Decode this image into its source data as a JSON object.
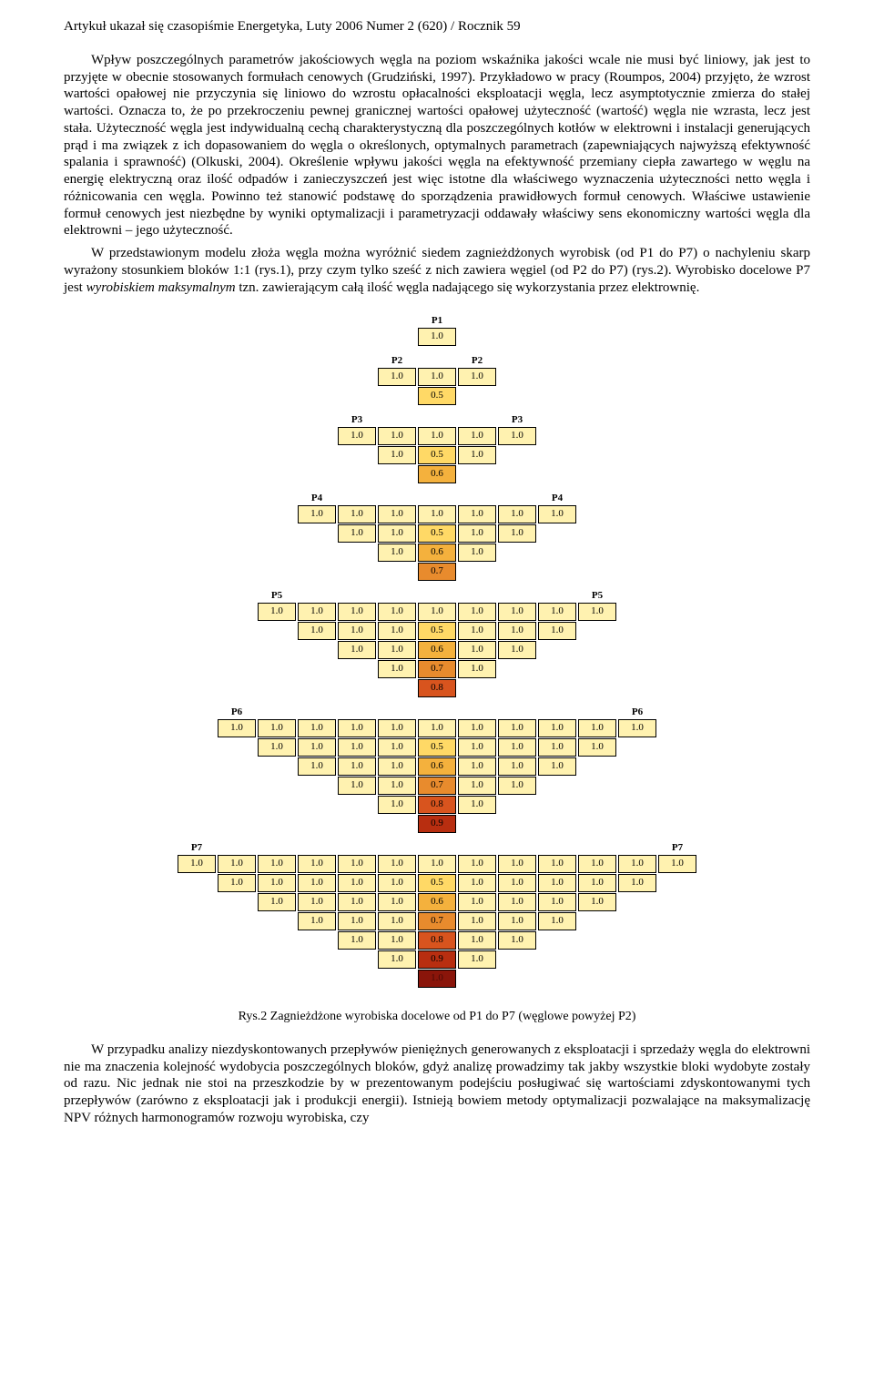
{
  "header": "Artykuł ukazał się czasopiśmie Energetyka, Luty 2006 Numer 2 (620) / Rocznik 59",
  "para1": "Wpływ poszczególnych parametrów jakościowych węgla na poziom wskaźnika jakości wcale nie musi być liniowy, jak jest to przyjęte w obecnie stosowanych formułach cenowych (Grudziński, 1997). Przykładowo w pracy (Roumpos, 2004) przyjęto, że wzrost wartości opałowej nie przyczynia się liniowo do wzrostu opłacalności eksploatacji węgla, lecz asymptotycznie zmierza do stałej wartości. Oznacza to, że po przekroczeniu pewnej granicznej wartości opałowej użyteczność (wartość) węgla nie wzrasta, lecz jest stała. Użyteczność węgla jest indywidualną cechą charakterystyczną dla poszczególnych kotłów w elektrowni i instalacji generujących prąd i ma związek z ich dopasowaniem do węgla o określonych, optymalnych parametrach (zapewniających najwyższą efektywność spalania i sprawność) (Olkuski, 2004). Określenie wpływu jakości węgla na efektywność przemiany ciepła zawartego w węglu na energię elektryczną oraz ilość odpadów i zanieczyszczeń jest więc istotne dla właściwego wyznaczenia użyteczności netto węgla i różnicowania cen węgla. Powinno też stanowić podstawę do sporządzenia prawidłowych formuł cenowych. Właściwe ustawienie formuł cenowych jest niezbędne by wyniki optymalizacji i parametryzacji oddawały właściwy sens ekonomiczny wartości węgla dla elektrowni – jego użyteczność.",
  "para2_a": "W przedstawionym modelu złoża węgla można wyróżnić siedem zagnieżdżonych wyrobisk (od P1 do P7) o nachyleniu skarp wyrażony stosunkiem bloków 1:1 (rys.1), przy czym tylko sześć z nich zawiera węgiel (od P2 do P7) (rys.2). Wyrobisko docelowe P7 jest ",
  "para2_b": "wyrobiskiem maksymalnym",
  "para2_c": " tzn. zawierającym całą ilość węgla nadającego się wykorzystania przez elektrownię.",
  "caption": "Rys.2 Zagnieżdżone wyrobiska docelowe od P1 do P7 (węglowe powyżej P2)",
  "para3": "W przypadku analizy niezdyskontowanych przepływów pieniężnych generowanych z eksploatacji i sprzedaży węgla do elektrowni nie ma znaczenia kolejność wydobycia poszczególnych bloków, gdyż analizę prowadzimy tak jakby wszystkie bloki wydobyte zostały od razu. Nic jednak nie stoi na przeszkodzie by w prezentowanym podejściu posługiwać się wartościami zdyskontowanymi tych przepływów (zarówno z eksploatacji jak i produkcji energii). Istnieją bowiem metody optymalizacji pozwalające na maksymalizację NPV różnych harmonogramów rozwoju wyrobiska, czy",
  "diagram": {
    "label_color": "#000000",
    "cell_font_size": 11,
    "colors": {
      "1.0": "#fff2b0",
      "0.5": "#ffd966",
      "0.6": "#f4b13d",
      "0.7": "#e88b2d",
      "0.8": "#d8541e",
      "0.9": "#b82e10",
      "core": "#8a150a"
    },
    "pits": [
      {
        "name": "P1",
        "rows": [
          {
            "labels": [
              "",
              "P1",
              ""
            ],
            "cells": [
              "1.0"
            ]
          }
        ]
      },
      {
        "name": "P2",
        "rows": [
          {
            "labels": [
              "P2",
              "",
              "P2"
            ],
            "cells": [
              "1.0",
              "1.0",
              "1.0"
            ]
          },
          {
            "cells": [
              "0.5"
            ]
          }
        ]
      },
      {
        "name": "P3",
        "rows": [
          {
            "labels": [
              "P3",
              "",
              "",
              "",
              "P3"
            ],
            "cells": [
              "1.0",
              "1.0",
              "1.0",
              "1.0",
              "1.0"
            ]
          },
          {
            "cells": [
              "1.0",
              "0.5",
              "1.0"
            ]
          },
          {
            "cells": [
              "0.6"
            ]
          }
        ]
      },
      {
        "name": "P4",
        "rows": [
          {
            "labels": [
              "P4",
              "",
              "",
              "",
              "",
              "",
              "P4"
            ],
            "cells": [
              "1.0",
              "1.0",
              "1.0",
              "1.0",
              "1.0",
              "1.0",
              "1.0"
            ]
          },
          {
            "cells": [
              "1.0",
              "1.0",
              "0.5",
              "1.0",
              "1.0"
            ]
          },
          {
            "cells": [
              "1.0",
              "0.6",
              "1.0"
            ]
          },
          {
            "cells": [
              "0.7"
            ]
          }
        ]
      },
      {
        "name": "P5",
        "rows": [
          {
            "labels": [
              "P5",
              "",
              "",
              "",
              "",
              "",
              "",
              "",
              "P5"
            ],
            "cells": [
              "1.0",
              "1.0",
              "1.0",
              "1.0",
              "1.0",
              "1.0",
              "1.0",
              "1.0",
              "1.0"
            ]
          },
          {
            "cells": [
              "1.0",
              "1.0",
              "1.0",
              "0.5",
              "1.0",
              "1.0",
              "1.0"
            ]
          },
          {
            "cells": [
              "1.0",
              "1.0",
              "0.6",
              "1.0",
              "1.0"
            ]
          },
          {
            "cells": [
              "1.0",
              "0.7",
              "1.0"
            ]
          },
          {
            "cells": [
              "0.8"
            ]
          }
        ]
      },
      {
        "name": "P6",
        "rows": [
          {
            "labels": [
              "P6",
              "",
              "",
              "",
              "",
              "",
              "",
              "",
              "",
              "",
              "P6"
            ],
            "cells": [
              "1.0",
              "1.0",
              "1.0",
              "1.0",
              "1.0",
              "1.0",
              "1.0",
              "1.0",
              "1.0",
              "1.0",
              "1.0"
            ]
          },
          {
            "cells": [
              "1.0",
              "1.0",
              "1.0",
              "1.0",
              "0.5",
              "1.0",
              "1.0",
              "1.0",
              "1.0"
            ]
          },
          {
            "cells": [
              "1.0",
              "1.0",
              "1.0",
              "0.6",
              "1.0",
              "1.0",
              "1.0"
            ]
          },
          {
            "cells": [
              "1.0",
              "1.0",
              "0.7",
              "1.0",
              "1.0"
            ]
          },
          {
            "cells": [
              "1.0",
              "0.8",
              "1.0"
            ]
          },
          {
            "cells": [
              "0.9"
            ]
          }
        ]
      },
      {
        "name": "P7",
        "rows": [
          {
            "labels": [
              "P7",
              "",
              "",
              "",
              "",
              "",
              "",
              "",
              "",
              "",
              "",
              "",
              "P7"
            ],
            "cells": [
              "1.0",
              "1.0",
              "1.0",
              "1.0",
              "1.0",
              "1.0",
              "1.0",
              "1.0",
              "1.0",
              "1.0",
              "1.0",
              "1.0",
              "1.0"
            ]
          },
          {
            "cells": [
              "1.0",
              "1.0",
              "1.0",
              "1.0",
              "1.0",
              "0.5",
              "1.0",
              "1.0",
              "1.0",
              "1.0",
              "1.0"
            ]
          },
          {
            "cells": [
              "1.0",
              "1.0",
              "1.0",
              "1.0",
              "0.6",
              "1.0",
              "1.0",
              "1.0",
              "1.0"
            ]
          },
          {
            "cells": [
              "1.0",
              "1.0",
              "1.0",
              "0.7",
              "1.0",
              "1.0",
              "1.0"
            ]
          },
          {
            "cells": [
              "1.0",
              "1.0",
              "0.8",
              "1.0",
              "1.0"
            ]
          },
          {
            "cells": [
              "1.0",
              "0.9",
              "1.0"
            ]
          },
          {
            "cells": [
              "1.0"
            ],
            "core": true
          }
        ]
      }
    ]
  }
}
